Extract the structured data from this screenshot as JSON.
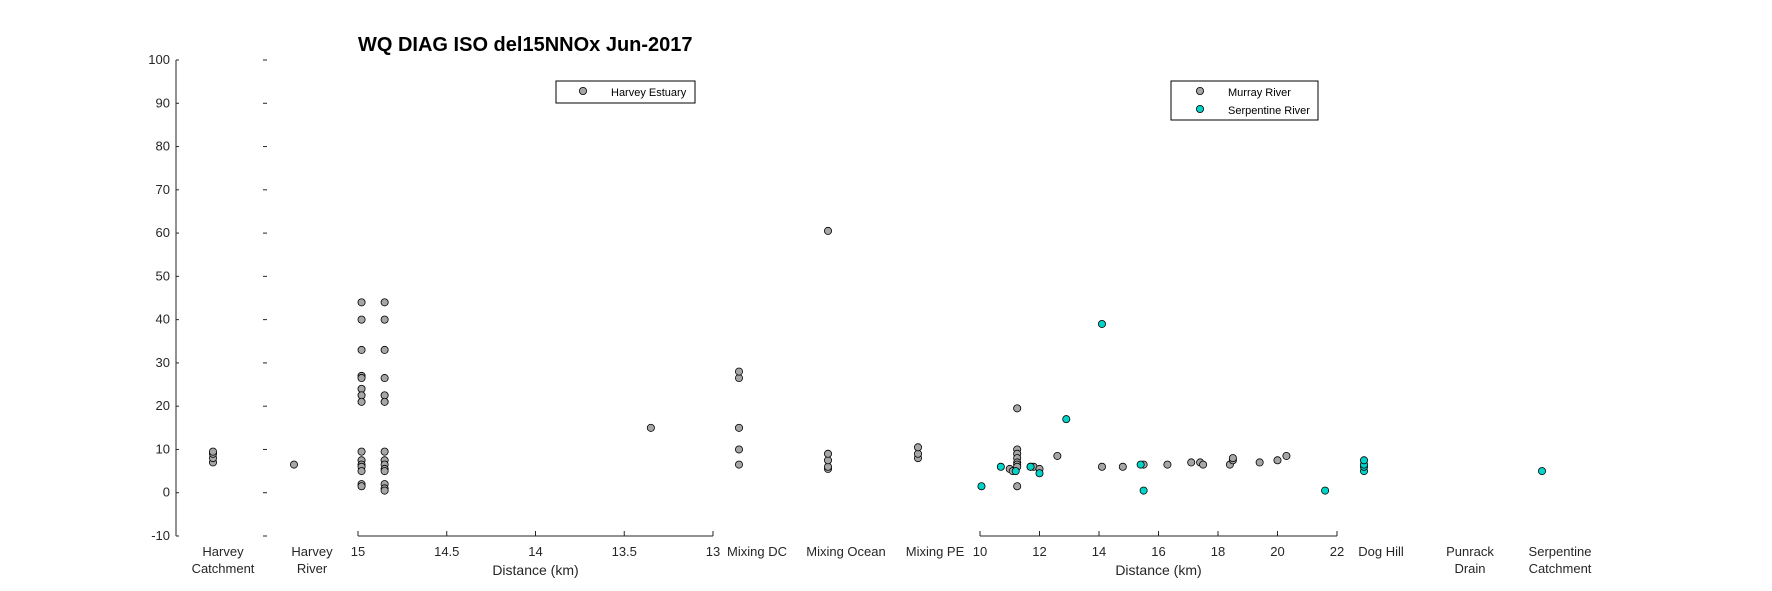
{
  "chart_data": {
    "type": "scatter",
    "title": "WQ DIAG ISO del15NNOx Jun-2017",
    "ylim": [
      -10,
      100
    ],
    "yticks": [
      -10,
      0,
      10,
      20,
      30,
      40,
      50,
      60,
      70,
      80,
      90,
      100
    ],
    "legend_left": {
      "entries": [
        "Harvey Estuary"
      ],
      "placement": "top"
    },
    "legend_right": {
      "entries": [
        "Murray River",
        "Serpentine River"
      ],
      "placement": "top"
    },
    "colors": {
      "harvey": "#a6a6a6",
      "murray": "#a6a6a6",
      "serpentine": "#00d4c8",
      "edge": "#000000"
    },
    "categories": {
      "harvey_catchment": {
        "lines": [
          "Harvey",
          "Catchment"
        ],
        "series": "Harvey Estuary",
        "values": [
          7,
          8,
          9,
          9.5
        ]
      },
      "harvey_river": {
        "lines": [
          "Harvey",
          "River"
        ],
        "series": "Harvey Estuary",
        "values": [
          6.5
        ]
      },
      "mixing_dc": {
        "lines": [
          "Mixing DC"
        ],
        "series": "Harvey Estuary",
        "values": [
          6.5,
          10,
          15,
          26.5,
          28
        ]
      },
      "mixing_ocean": {
        "lines": [
          "Mixing Ocean"
        ],
        "series": "Harvey Estuary",
        "values": [
          5.5,
          6,
          7.5,
          9,
          60.5
        ]
      },
      "mixing_pe": {
        "lines": [
          "Mixing PE"
        ],
        "series": "Harvey Estuary",
        "values": [
          8,
          9,
          10.5
        ]
      },
      "dog_hill": {
        "lines": [
          "Dog Hill"
        ],
        "series": "Serpentine River",
        "values": [
          5,
          6,
          6.5,
          7.5
        ]
      },
      "punrack_drain": {
        "lines": [
          "Punrack",
          "Drain"
        ],
        "series": "Serpentine River",
        "values": []
      },
      "serpentine_catchment": {
        "lines": [
          "Serpentine",
          "Catchment"
        ],
        "series": "Serpentine River",
        "values": [
          5
        ]
      }
    },
    "harvey_estuary": {
      "xlabel": "Distance (km)",
      "xlim": [
        15,
        13
      ],
      "xticks": [
        15,
        14.5,
        14,
        13.5,
        13
      ],
      "series": [
        {
          "name": "Harvey Estuary",
          "points": [
            [
              14.98,
              44
            ],
            [
              14.98,
              40
            ],
            [
              14.98,
              33
            ],
            [
              14.98,
              27
            ],
            [
              14.98,
              26.5
            ],
            [
              14.98,
              24
            ],
            [
              14.98,
              22.5
            ],
            [
              14.98,
              21
            ],
            [
              14.98,
              9.5
            ],
            [
              14.98,
              7.5
            ],
            [
              14.98,
              6.5
            ],
            [
              14.98,
              6
            ],
            [
              14.98,
              5
            ],
            [
              14.98,
              2
            ],
            [
              14.98,
              1.5
            ],
            [
              14.85,
              44
            ],
            [
              14.85,
              40
            ],
            [
              14.85,
              33
            ],
            [
              14.85,
              26.5
            ],
            [
              14.85,
              22.5
            ],
            [
              14.85,
              21
            ],
            [
              14.85,
              9.5
            ],
            [
              14.85,
              7.5
            ],
            [
              14.85,
              6.5
            ],
            [
              14.85,
              5.5
            ],
            [
              14.85,
              5
            ],
            [
              14.85,
              2
            ],
            [
              14.85,
              1
            ],
            [
              14.85,
              0.5
            ],
            [
              13.35,
              15
            ]
          ]
        }
      ]
    },
    "lower_rivers": {
      "xlabel": "Distance (km)",
      "xlim": [
        10,
        22
      ],
      "xticks": [
        10,
        12,
        14,
        16,
        18,
        20,
        22
      ],
      "series": [
        {
          "name": "Murray River",
          "points": [
            [
              11,
              5.5
            ],
            [
              11.1,
              5
            ],
            [
              11.25,
              19.5
            ],
            [
              11.25,
              10
            ],
            [
              11.25,
              9
            ],
            [
              11.25,
              8
            ],
            [
              11.25,
              7
            ],
            [
              11.25,
              6.5
            ],
            [
              11.25,
              6
            ],
            [
              11.25,
              1.5
            ],
            [
              11.7,
              6
            ],
            [
              11.8,
              6
            ],
            [
              12,
              5.5
            ],
            [
              12.6,
              8.5
            ],
            [
              14.1,
              6
            ],
            [
              14.8,
              6
            ],
            [
              15.5,
              6.5
            ],
            [
              16.3,
              6.5
            ],
            [
              17.1,
              7
            ],
            [
              17.4,
              7
            ],
            [
              17.5,
              6.5
            ],
            [
              18.4,
              6.5
            ],
            [
              18.5,
              7.5
            ],
            [
              18.5,
              8
            ],
            [
              19.4,
              7
            ],
            [
              20,
              7.5
            ],
            [
              20.3,
              8.5
            ]
          ]
        },
        {
          "name": "Serpentine River",
          "points": [
            [
              10.05,
              1.5
            ],
            [
              10.7,
              6
            ],
            [
              11.2,
              5
            ],
            [
              11.7,
              6
            ],
            [
              12,
              4.5
            ],
            [
              12.9,
              17
            ],
            [
              14.1,
              39
            ],
            [
              15.4,
              6.5
            ],
            [
              15.5,
              0.5
            ],
            [
              21.6,
              0.5
            ]
          ]
        }
      ]
    }
  }
}
